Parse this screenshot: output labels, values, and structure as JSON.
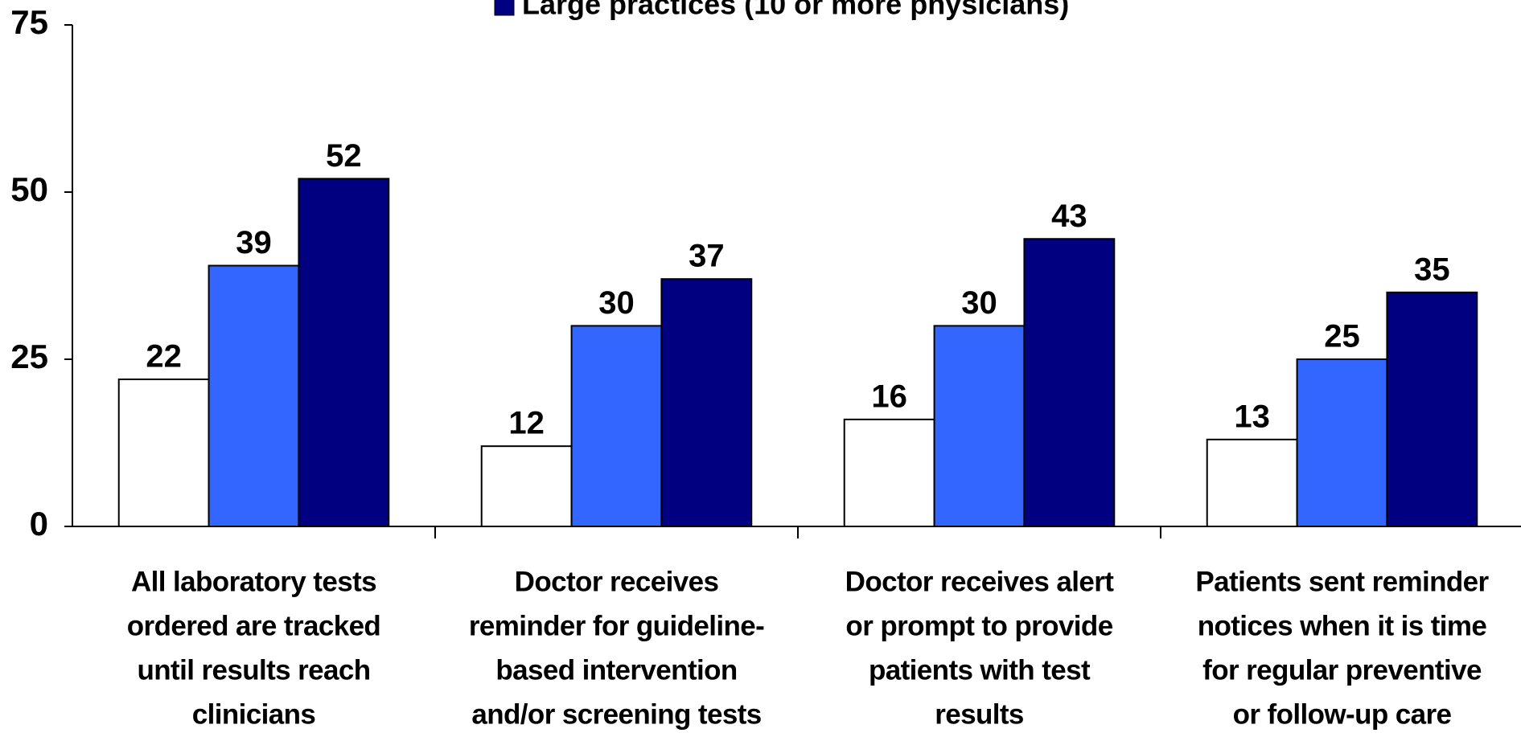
{
  "chart_data": {
    "type": "bar",
    "categories": [
      [
        "All laboratory tests",
        "ordered are tracked",
        "until results reach",
        "clinicians"
      ],
      [
        "Doctor receives",
        "reminder for guideline-",
        "based intervention",
        "and/or screening tests"
      ],
      [
        "Doctor receives alert",
        "or prompt to provide",
        "patients with test",
        "results"
      ],
      [
        "Patients sent reminder",
        "notices when it is time",
        "for regular preventive",
        "or follow-up care"
      ]
    ],
    "series": [
      {
        "color": "#ffffff",
        "values": [
          22,
          12,
          16,
          13
        ]
      },
      {
        "color": "#3366ff",
        "values": [
          39,
          30,
          30,
          25
        ]
      },
      {
        "name": "Large practices (10 or more physicians)",
        "color": "#000080",
        "values": [
          52,
          37,
          43,
          35
        ]
      }
    ],
    "ylim": [
      0,
      75
    ],
    "yticks": [
      0,
      25,
      50,
      75
    ]
  }
}
